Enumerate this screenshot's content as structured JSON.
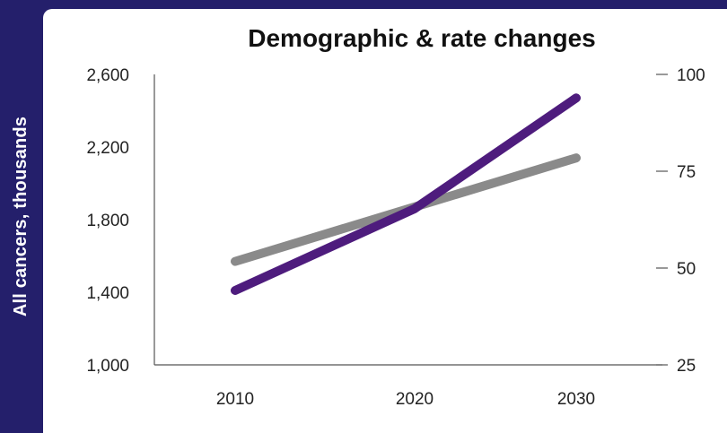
{
  "chart_data": {
    "type": "line",
    "title": "Demographic & rate changes",
    "ylabel": "All cancers, thousands",
    "xlabel": "",
    "categories": [
      "2010",
      "2020",
      "2030"
    ],
    "ylim": [
      1000,
      2600
    ],
    "y2lim": [
      25,
      100
    ],
    "yticks": [
      "1,000",
      "1,400",
      "1,800",
      "2,200",
      "2,600"
    ],
    "y2ticks": [
      "25",
      "50",
      "75",
      "100"
    ],
    "grid": false,
    "series": [
      {
        "axis": "left",
        "color": "#8a8a8a",
        "values": [
          1570,
          1870,
          2140
        ]
      },
      {
        "axis": "left",
        "color": "#4e1c7d",
        "values": [
          1410,
          1860,
          2470
        ]
      }
    ]
  }
}
